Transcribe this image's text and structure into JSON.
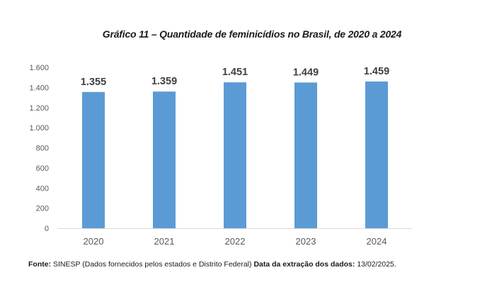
{
  "chart_data": {
    "type": "bar",
    "title": "Gráfico 11 – Quantidade de feminicídios no Brasil, de 2020 a 2024",
    "categories": [
      "2020",
      "2021",
      "2022",
      "2023",
      "2024"
    ],
    "values": [
      1355,
      1359,
      1451,
      1449,
      1459
    ],
    "data_labels": [
      "1.355",
      "1.359",
      "1.451",
      "1.449",
      "1.459"
    ],
    "y_ticks": [
      0,
      200,
      400,
      600,
      800,
      1000,
      1200,
      1400,
      1600
    ],
    "y_tick_labels": [
      "0",
      "200",
      "400",
      "600",
      "800",
      "1.000",
      "1.200",
      "1.400",
      "1.600"
    ],
    "ylim": [
      0,
      1600
    ],
    "xlabel": "",
    "ylabel": "",
    "grid": false,
    "bar_color": "#5b9bd5"
  },
  "footer": {
    "source_label": "Fonte:",
    "source_text": " SINESP (Dados fornecidos pelos estados e Distrito Federal)  ",
    "date_label": "Data da extração dos dados:",
    "date_text": " 13/02/2025."
  }
}
